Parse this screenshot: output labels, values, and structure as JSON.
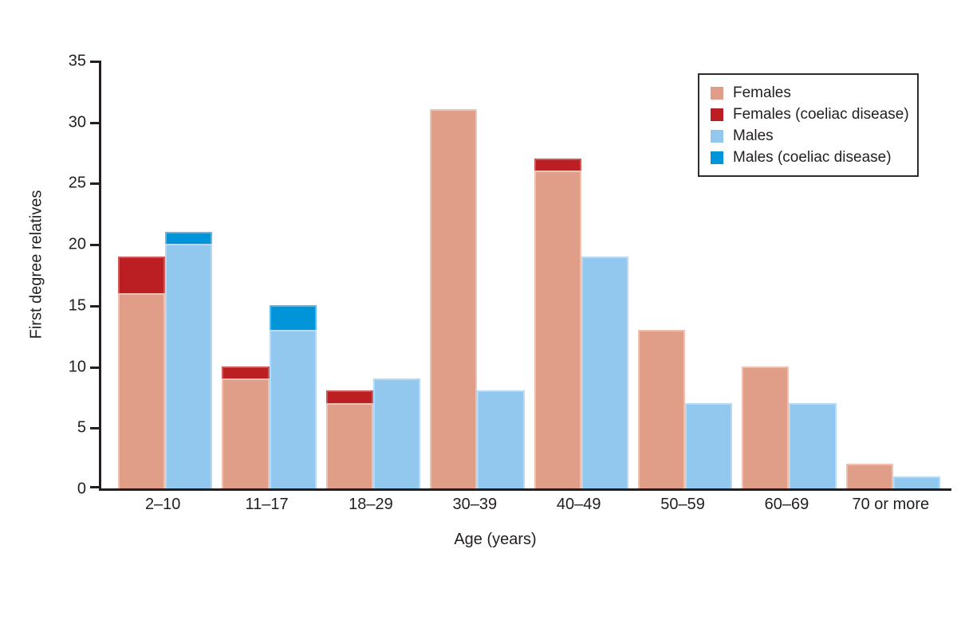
{
  "figure": {
    "background": "#FFFFFF",
    "text_color": "#231F20",
    "axis_color": "#231F20",
    "legend_border_color": "#2D2D2D"
  },
  "chart_data": {
    "type": "bar",
    "variant": "grouped-pairs-with-stacked-highlight",
    "title": "",
    "xlabel": "Age (years)",
    "ylabel": "First degree relatives",
    "ylim": [
      0,
      35
    ],
    "yticks": [
      0,
      5,
      10,
      15,
      20,
      25,
      30,
      35
    ],
    "grid": false,
    "legend_position": "top-right",
    "categories": [
      "2–10",
      "11–17",
      "18–29",
      "30–39",
      "40–49",
      "50–59",
      "60–69",
      "70 or more"
    ],
    "series": [
      {
        "name": "Females",
        "stack": "female",
        "role": "base",
        "color": "#E09D87",
        "edge": "#EDC2B2",
        "values": [
          16,
          9,
          7,
          31,
          26,
          13,
          10,
          2
        ]
      },
      {
        "name": "Females (coeliac disease)",
        "stack": "female",
        "role": "top",
        "color": "#BB1E23",
        "edge": "#CE5A55",
        "values": [
          3,
          1,
          1,
          0,
          1,
          0,
          0,
          0
        ]
      },
      {
        "name": "Males",
        "stack": "male",
        "role": "base",
        "color": "#92C7EE",
        "edge": "#B6DAF5",
        "values": [
          20,
          13,
          9,
          8,
          19,
          7,
          7,
          1
        ]
      },
      {
        "name": "Males (coeliac disease)",
        "stack": "male",
        "role": "top",
        "color": "#0095D8",
        "edge": "#5CB8E6",
        "values": [
          1,
          2,
          0,
          0,
          0,
          0,
          0,
          0
        ]
      }
    ],
    "stacked_totals": {
      "female": [
        19,
        10,
        8,
        31,
        27,
        13,
        10,
        2
      ],
      "male": [
        21,
        15,
        9,
        8,
        19,
        7,
        7,
        1
      ]
    }
  }
}
